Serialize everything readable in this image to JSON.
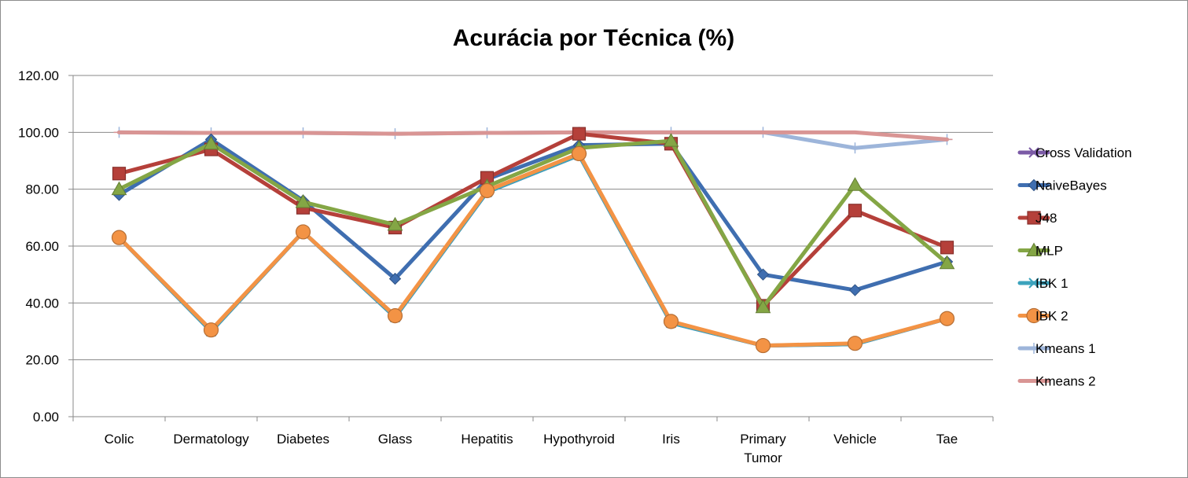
{
  "chart_data": {
    "type": "line",
    "title": "Acurácia por Técnica (%)",
    "xlabel": "",
    "ylabel": "",
    "ylim": [
      0,
      120
    ],
    "yticks": [
      "0.00",
      "20.00",
      "40.00",
      "60.00",
      "80.00",
      "100.00",
      "120.00"
    ],
    "categories": [
      "Colic",
      "Dermatology",
      "Diabetes",
      "Glass",
      "Hepatitis",
      "Hypothyroid",
      "Iris",
      "Primary Tumor",
      "Vehicle",
      "Tae"
    ],
    "grid": true,
    "legend_position": "right",
    "series": [
      {
        "name": "Cross Validation",
        "color": "#7b5aa6",
        "marker": "x",
        "values": [
          63,
          30,
          65,
          35,
          79,
          92,
          33,
          25,
          25.5,
          34.5
        ]
      },
      {
        "name": "NaiveBayes",
        "color": "#3f6eb0",
        "marker": "diamond",
        "values": [
          78,
          97.5,
          76,
          48.5,
          83.5,
          95.5,
          96,
          50,
          44.5,
          54.5
        ]
      },
      {
        "name": "J48",
        "color": "#b5403a",
        "marker": "square",
        "values": [
          85.5,
          94,
          73.5,
          66.5,
          84,
          99.5,
          96,
          39,
          72.5,
          59.5
        ]
      },
      {
        "name": "MLP",
        "color": "#84a645",
        "marker": "triangle",
        "values": [
          80,
          96,
          75.5,
          67.5,
          81,
          94.5,
          97,
          38.5,
          81.5,
          54
        ]
      },
      {
        "name": "IBK 1",
        "color": "#3ba3bd",
        "marker": "x",
        "values": [
          63,
          30,
          65,
          35,
          79,
          92,
          33,
          25,
          25.5,
          34.5
        ]
      },
      {
        "name": "IBK 2",
        "color": "#f39345",
        "marker": "circle",
        "values": [
          63,
          30.5,
          65,
          35.5,
          79.5,
          92.5,
          33.5,
          25,
          25.8,
          34.5
        ]
      },
      {
        "name": "Kmeans 1",
        "color": "#9db5da",
        "marker": "plus",
        "values": [
          100,
          99.8,
          99.8,
          99.5,
          99.8,
          100,
          100,
          100,
          94.5,
          97.5
        ]
      },
      {
        "name": "Kmeans 2",
        "color": "#d99594",
        "marker": "dash",
        "values": [
          100,
          99.8,
          99.8,
          99.5,
          99.8,
          100,
          100,
          100,
          100,
          97.5
        ]
      }
    ]
  }
}
